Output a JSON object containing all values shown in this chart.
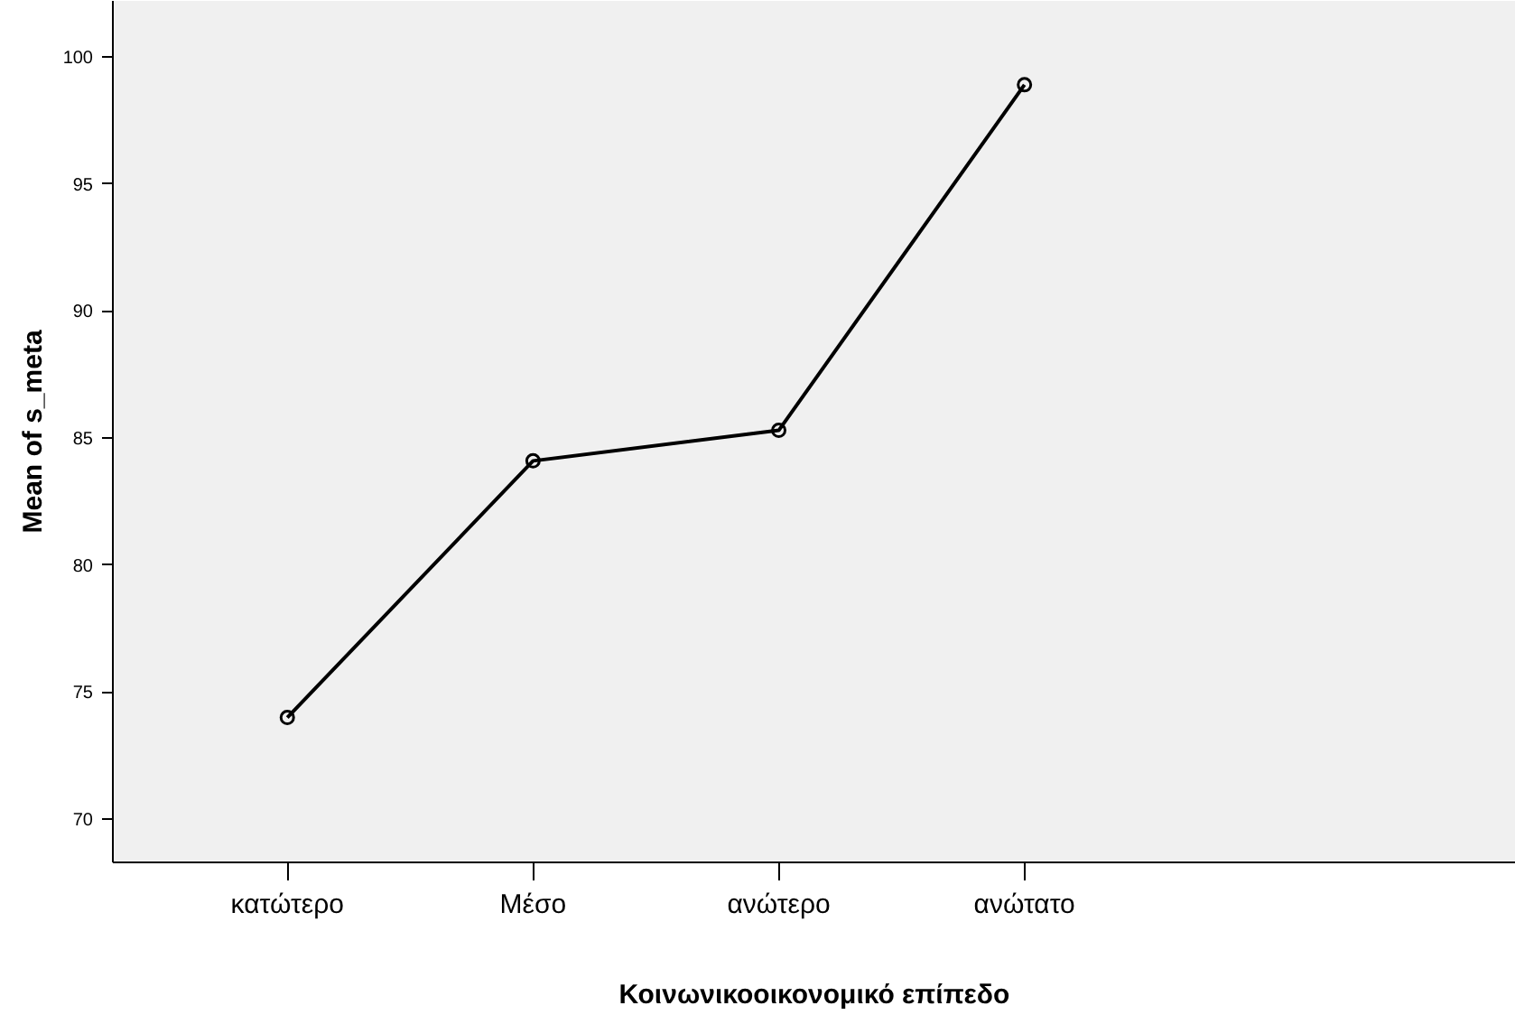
{
  "chart_data": {
    "type": "line",
    "xlabel": "Κοινωνικοοικονομικό επίπεδο",
    "ylabel": "Mean of s_meta",
    "categories": [
      "κατώτερο",
      "Μέσο",
      "ανώτερο",
      "ανώτατο"
    ],
    "series": [
      {
        "color": "#000000",
        "values": [
          74.0,
          84.1,
          85.3,
          98.9
        ]
      }
    ],
    "ylim": [
      68.3,
      102.2
    ],
    "yticks": [
      70,
      75,
      80,
      85,
      90,
      95,
      100
    ],
    "marker": "circle",
    "grid": false
  }
}
